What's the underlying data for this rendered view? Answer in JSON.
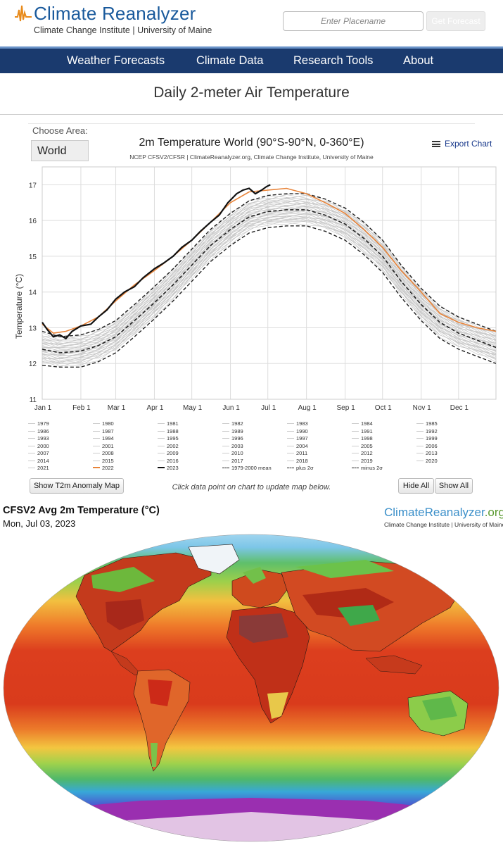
{
  "header": {
    "logo_title": "Climate Reanalyzer",
    "logo_subtitle": "Climate Change Institute | University of Maine",
    "place_placeholder": "Enter Placename",
    "forecast_button": "Get Forecast"
  },
  "nav": {
    "items": [
      "Weather Forecasts",
      "Climate Data",
      "Research Tools",
      "About"
    ]
  },
  "page_title": "Daily 2-meter Air Temperature",
  "controls": {
    "choose_area_label": "Choose Area:",
    "area_value": "World",
    "export_label": "Export Chart",
    "anomaly_button": "Show T2m Anomaly Map",
    "hint": "Click data point on chart to update map below.",
    "hide_all": "Hide All",
    "show_all": "Show All"
  },
  "chart_data": {
    "type": "line",
    "title": "2m Temperature World (90°S-90°N, 0-360°E)",
    "subtitle": "NCEP CFSV2/CFSR | ClimateReanalyzer.org, Climate Change Institute, University of Maine",
    "ylabel": "Temperature (°C)",
    "xlabel": "",
    "ylim": [
      11,
      17.5
    ],
    "yticks": [
      11,
      12,
      13,
      14,
      15,
      16,
      17
    ],
    "xticks": [
      "Jan 1",
      "Feb 1",
      "Mar 1",
      "Apr 1",
      "May 1",
      "Jun 1",
      "Jul 1",
      "Aug 1",
      "Sep 1",
      "Oct 1",
      "Nov 1",
      "Dec 1"
    ],
    "xtick_days": [
      1,
      32,
      60,
      91,
      121,
      152,
      182,
      213,
      244,
      274,
      305,
      335
    ],
    "grid": true,
    "legend_position": "bottom",
    "colors": {
      "2022": "#e8843a",
      "2023": "#111111",
      "mean": "#222222",
      "other_years": "#c8c8c8"
    },
    "series": [
      {
        "name": "1979-2000 mean",
        "style": "dashed",
        "x": [
          1,
          15,
          32,
          46,
          60,
          75,
          91,
          106,
          121,
          136,
          152,
          167,
          182,
          197,
          213,
          228,
          244,
          259,
          274,
          289,
          305,
          320,
          335,
          350,
          365
        ],
        "y": [
          12.4,
          12.3,
          12.35,
          12.5,
          12.75,
          13.2,
          13.7,
          14.2,
          14.75,
          15.3,
          15.75,
          16.1,
          16.25,
          16.3,
          16.3,
          16.15,
          15.9,
          15.5,
          15.0,
          14.3,
          13.65,
          13.15,
          12.85,
          12.65,
          12.45
        ]
      },
      {
        "name": "plus 2σ",
        "style": "dashed",
        "x": [
          1,
          15,
          32,
          46,
          60,
          75,
          91,
          106,
          121,
          136,
          152,
          167,
          182,
          197,
          213,
          228,
          244,
          259,
          274,
          289,
          305,
          320,
          335,
          350,
          365
        ],
        "y": [
          12.9,
          12.75,
          12.8,
          12.95,
          13.2,
          13.65,
          14.15,
          14.65,
          15.2,
          15.75,
          16.2,
          16.55,
          16.7,
          16.75,
          16.75,
          16.6,
          16.35,
          15.95,
          15.45,
          14.75,
          14.1,
          13.6,
          13.3,
          13.1,
          12.9
        ]
      },
      {
        "name": "minus 2σ",
        "style": "dashed",
        "x": [
          1,
          15,
          32,
          46,
          60,
          75,
          91,
          106,
          121,
          136,
          152,
          167,
          182,
          197,
          213,
          228,
          244,
          259,
          274,
          289,
          305,
          320,
          335,
          350,
          365
        ],
        "y": [
          11.95,
          11.9,
          11.9,
          12.05,
          12.3,
          12.75,
          13.25,
          13.75,
          14.3,
          14.85,
          15.3,
          15.65,
          15.8,
          15.85,
          15.85,
          15.7,
          15.45,
          15.05,
          14.55,
          13.85,
          13.2,
          12.7,
          12.4,
          12.2,
          12.0
        ]
      },
      {
        "name": "2022",
        "style": "solid",
        "x": [
          1,
          10,
          20,
          32,
          46,
          60,
          75,
          91,
          106,
          121,
          136,
          152,
          167,
          182,
          197,
          213,
          228,
          244,
          259,
          274,
          289,
          305,
          320,
          335,
          350,
          365
        ],
        "y": [
          13.1,
          12.85,
          12.9,
          13.05,
          13.3,
          13.75,
          14.2,
          14.6,
          15.0,
          15.45,
          15.95,
          16.5,
          16.8,
          16.85,
          16.9,
          16.75,
          16.5,
          16.2,
          15.75,
          15.25,
          14.6,
          14.0,
          13.4,
          13.15,
          13.0,
          12.9
        ]
      },
      {
        "name": "2023",
        "style": "solid",
        "x": [
          1,
          5,
          10,
          15,
          20,
          25,
          32,
          40,
          46,
          53,
          60,
          67,
          75,
          82,
          91,
          98,
          106,
          113,
          121,
          128,
          136,
          143,
          150,
          157,
          162,
          167,
          172,
          177,
          181,
          184
        ],
        "y": [
          13.15,
          12.95,
          12.75,
          12.8,
          12.7,
          12.9,
          13.05,
          13.1,
          13.3,
          13.5,
          13.8,
          14.0,
          14.15,
          14.4,
          14.65,
          14.8,
          15.0,
          15.25,
          15.45,
          15.7,
          15.95,
          16.15,
          16.5,
          16.75,
          16.85,
          16.9,
          16.75,
          16.85,
          16.95,
          17.0
        ]
      }
    ]
  },
  "legend": {
    "columns": [
      [
        "1979",
        "1986",
        "1993",
        "2000",
        "2007",
        "2014",
        "2021"
      ],
      [
        "1980",
        "1987",
        "1994",
        "2001",
        "2008",
        "2015",
        "2022"
      ],
      [
        "1981",
        "1988",
        "1995",
        "2002",
        "2009",
        "2016",
        "2023"
      ],
      [
        "1982",
        "1989",
        "1996",
        "2003",
        "2010",
        "2017",
        "1979-2000 mean"
      ],
      [
        "1983",
        "1990",
        "1997",
        "2004",
        "2011",
        "2018",
        "plus 2σ"
      ],
      [
        "1984",
        "1991",
        "1998",
        "2005",
        "2012",
        "2019",
        "minus 2σ"
      ],
      [
        "1985",
        "1992",
        "1999",
        "2006",
        "2013",
        "2020",
        ""
      ]
    ]
  },
  "map": {
    "title": "CFSV2 Avg 2m Temperature (°C)",
    "date": "Mon, Jul 03, 2023",
    "brand_main": "ClimateReanalyzer",
    "brand_org": ".org",
    "brand_sub": "Climate Change Institute | University of Maine",
    "colors": {
      "tropics": "#d83a1c",
      "hot": "#b51e12",
      "warm": "#f08a2a",
      "mild": "#f5d84a",
      "cool": "#6cc24a",
      "cold": "#2f9fd9",
      "frigid": "#3a3fb0",
      "antarctic": "#8a2aa8",
      "ice": "#e8c8e8",
      "border": "#2a1a14"
    }
  }
}
